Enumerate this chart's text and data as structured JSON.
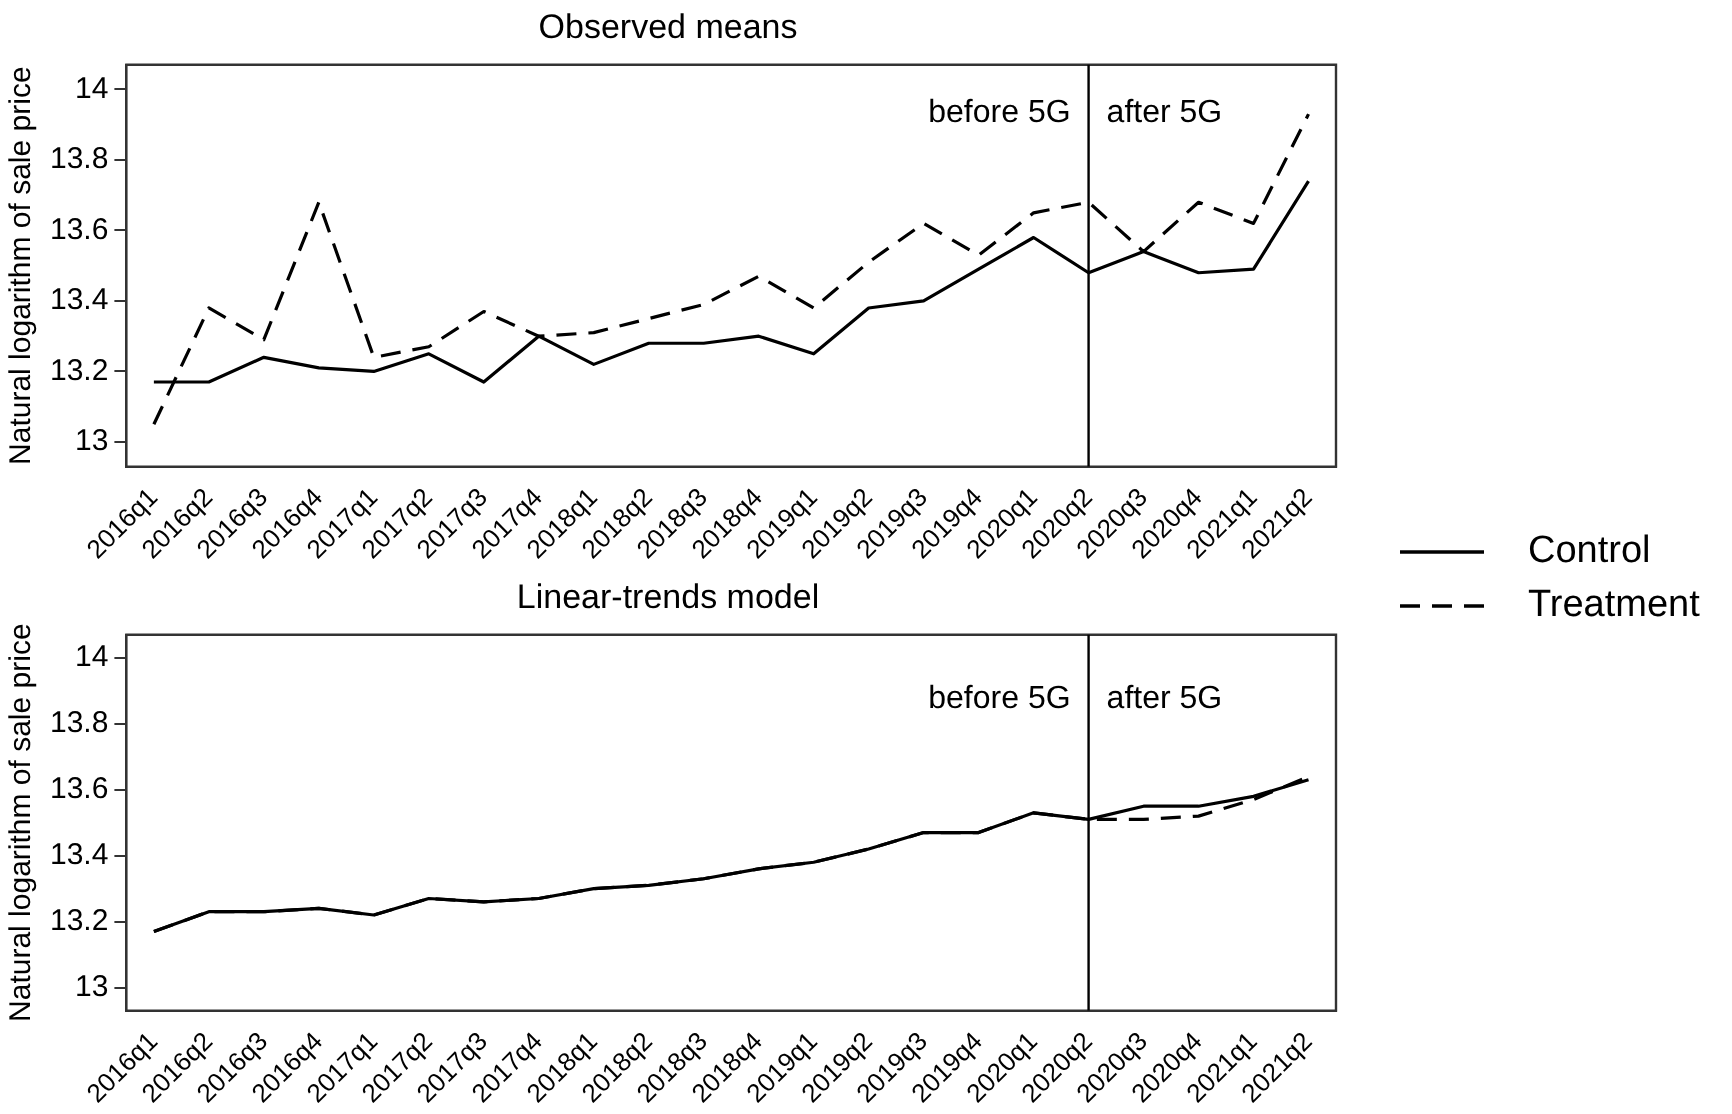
{
  "chart_data": [
    {
      "type": "line",
      "title": "Observed means",
      "ylabel": "Natural logarithm of sale price",
      "categories": [
        "2016q1",
        "2016q2",
        "2016q3",
        "2016q4",
        "2017q1",
        "2017q2",
        "2017q3",
        "2017q4",
        "2018q1",
        "2018q2",
        "2018q3",
        "2018q4",
        "2019q1",
        "2019q2",
        "2019q3",
        "2019q4",
        "2020q1",
        "2020q2",
        "2020q3",
        "2020q4",
        "2021q1",
        "2021q2"
      ],
      "series": [
        {
          "name": "Control",
          "color": "#000000",
          "line_style": "solid",
          "values": [
            13.17,
            13.17,
            13.24,
            13.21,
            13.2,
            13.25,
            13.17,
            13.3,
            13.22,
            13.28,
            13.28,
            13.3,
            13.25,
            13.38,
            13.4,
            13.49,
            13.58,
            13.48,
            13.54,
            13.48,
            13.49,
            13.74
          ]
        },
        {
          "name": "Treatment",
          "color": "#000000",
          "line_style": "dashed",
          "values": [
            13.05,
            13.38,
            13.29,
            13.68,
            13.24,
            13.27,
            13.37,
            13.3,
            13.31,
            13.35,
            13.39,
            13.47,
            13.38,
            13.51,
            13.62,
            13.53,
            13.65,
            13.68,
            13.54,
            13.68,
            13.62,
            13.93
          ]
        }
      ],
      "ylim": [
        12.93,
        14.07
      ],
      "yticks": [
        13,
        13.2,
        13.4,
        13.6,
        13.8,
        14
      ],
      "grid": false,
      "legend": "right",
      "marker": "none",
      "ref_lines": [
        {
          "axis": "x",
          "value": "2020q2",
          "color": "#000000"
        }
      ],
      "annotations": [
        "before 5G",
        "after 5G"
      ]
    },
    {
      "type": "line",
      "title": "Linear-trends model",
      "ylabel": "Natural logarithm of sale price",
      "categories": [
        "2016q1",
        "2016q2",
        "2016q3",
        "2016q4",
        "2017q1",
        "2017q2",
        "2017q3",
        "2017q4",
        "2018q1",
        "2018q2",
        "2018q3",
        "2018q4",
        "2019q1",
        "2019q2",
        "2019q3",
        "2019q4",
        "2020q1",
        "2020q2",
        "2020q3",
        "2020q4",
        "2021q1",
        "2021q2"
      ],
      "series": [
        {
          "color": "#000000",
          "line_style": "solid",
          "values": [
            13.17,
            13.23,
            13.23,
            13.24,
            13.22,
            13.27,
            13.26,
            13.27,
            13.3,
            13.31,
            13.33,
            13.36,
            13.38,
            13.42,
            13.47,
            13.47,
            13.53,
            13.51,
            13.55,
            13.55,
            13.58,
            13.63
          ]
        },
        {
          "color": "#000000",
          "line_style": "dashed",
          "values": [
            13.17,
            13.23,
            13.23,
            13.24,
            13.22,
            13.27,
            13.26,
            13.27,
            13.3,
            13.31,
            13.33,
            13.36,
            13.38,
            13.42,
            13.47,
            13.47,
            13.53,
            13.51,
            13.51,
            13.52,
            13.57,
            13.64
          ]
        }
      ],
      "ylim": [
        12.93,
        14.07
      ],
      "yticks": [
        13,
        13.2,
        13.4,
        13.6,
        13.8,
        14
      ],
      "grid": false,
      "legend": false,
      "marker": "none",
      "ref_lines": [
        {
          "axis": "x",
          "value": "2020q2",
          "color": "#000000"
        }
      ],
      "annotations": [
        "before 5G",
        "after 5G"
      ]
    }
  ]
}
